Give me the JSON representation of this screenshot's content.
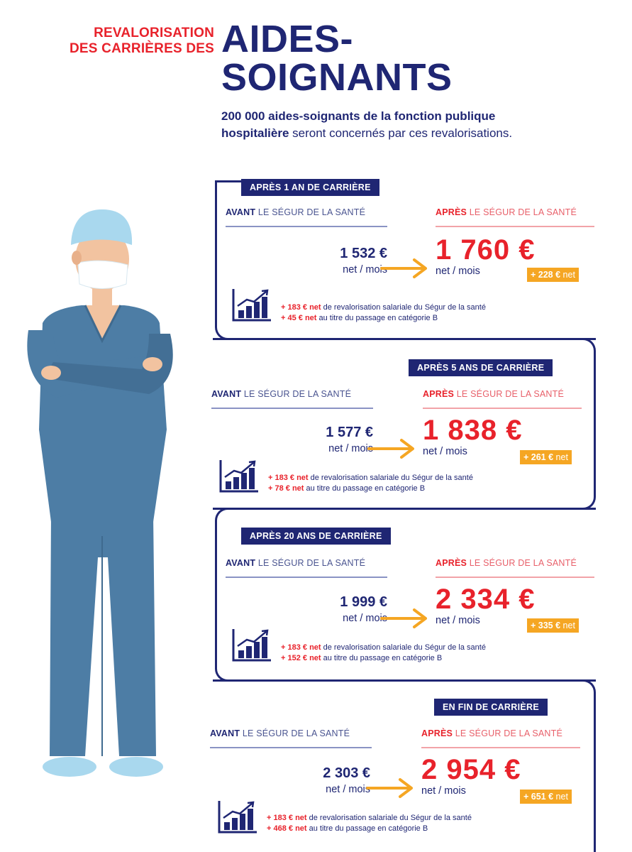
{
  "header": {
    "kicker_line1": "REVALORISATION",
    "kicker_line2": "DES CARRIÈRES DES",
    "title_line1": "AIDES-",
    "title_line2": "SOIGNANTS",
    "subtitle_bold_line1": "200 000 aides-soignants de la fonction publique",
    "subtitle_bold_line2": "hospitalière",
    "subtitle_rest": " seront concernés par ces revalorisations."
  },
  "labels": {
    "avant": "AVANT",
    "apres": "APRÈS",
    "segur": " LE SÉGUR DE LA SANTÉ",
    "net_mois": "net / mois",
    "net": " net"
  },
  "colors": {
    "navy": "#1f2673",
    "red": "#e8222b",
    "orange": "#f5a623",
    "scrubs": "#4d7da5",
    "cap": "#a9d8ee"
  },
  "sections": [
    {
      "tag": "APRÈS 1 AN DE CARRIÈRE",
      "before": "1 532 €",
      "after": "1 760 €",
      "gain": "+ 228 €",
      "line1_amount": "+ 183 € net",
      "line1_text": " de revalorisation salariale du Ségur de la santé",
      "line2_amount": "+ 45 € net",
      "line2_text": " au titre du passage en catégorie B"
    },
    {
      "tag": "APRÈS 5 ANS DE CARRIÈRE",
      "before": "1 577 €",
      "after": "1 838 €",
      "gain": "+ 261 €",
      "line1_amount": "+ 183 € net",
      "line1_text": " de revalorisation salariale du Ségur de la santé",
      "line2_amount": "+ 78 € net",
      "line2_text": " au titre du passage en catégorie B"
    },
    {
      "tag": "APRÈS 20 ANS DE CARRIÈRE",
      "before": "1 999 €",
      "after": "2 334 €",
      "gain": "+ 335 €",
      "line1_amount": "+ 183 € net",
      "line1_text": " de revalorisation salariale du Ségur de la santé",
      "line2_amount": "+ 152 € net",
      "line2_text": " au titre du passage en catégorie B"
    },
    {
      "tag": "EN FIN DE CARRIÈRE",
      "before": "2 303 €",
      "after": "2 954 €",
      "gain": "+ 651 €",
      "line1_amount": "+ 183 € net",
      "line1_text": " de revalorisation salariale du Ségur de la santé",
      "line2_amount": "+ 468 € net",
      "line2_text": " au titre du passage en catégorie B"
    }
  ]
}
